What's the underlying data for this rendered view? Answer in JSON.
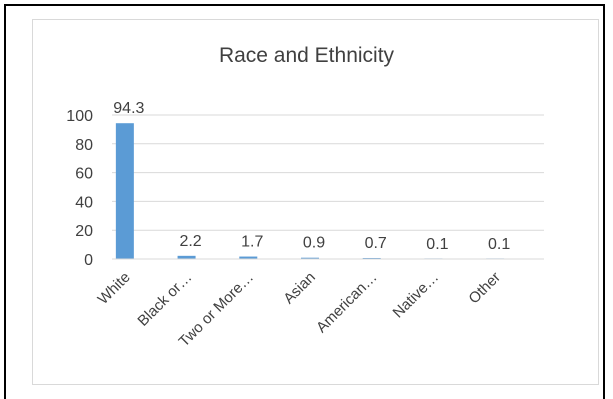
{
  "chart_data": {
    "type": "bar",
    "title": "Race and Ethnicity",
    "categories": [
      "White",
      "Black or…",
      "Two or More…",
      "Asian",
      "American…",
      "Native…",
      "Other"
    ],
    "values": [
      94.3,
      2.2,
      1.7,
      0.9,
      0.7,
      0.1,
      0.1
    ],
    "data_labels": [
      "94.3",
      "2.2",
      "1.7",
      "0.9",
      "0.7",
      "0.1",
      "0.1"
    ],
    "y_ticks": [
      "0",
      "20",
      "40",
      "60",
      "80",
      "100"
    ],
    "ylim": [
      0,
      100
    ],
    "grid": true,
    "legend": "none",
    "bar_color": "#5b9bd5"
  }
}
